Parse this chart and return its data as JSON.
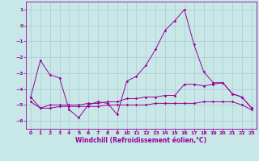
{
  "xlabel": "Windchill (Refroidissement éolien,°C)",
  "bg_color": "#c8e8e8",
  "line_color": "#990099",
  "xlim": [
    -0.5,
    23.5
  ],
  "ylim": [
    -6.5,
    1.5
  ],
  "yticks": [
    1,
    0,
    -1,
    -2,
    -3,
    -4,
    -5,
    -6
  ],
  "xticks": [
    0,
    1,
    2,
    3,
    4,
    5,
    6,
    7,
    8,
    9,
    10,
    11,
    12,
    13,
    14,
    15,
    16,
    17,
    18,
    19,
    20,
    21,
    22,
    23
  ],
  "grid_color": "#b0c8d0",
  "series": [
    {
      "x": [
        0,
        1,
        2,
        3,
        4,
        5,
        6,
        7,
        8,
        9,
        10,
        11,
        12,
        13,
        14,
        15,
        16,
        17,
        18,
        19,
        20,
        21,
        22,
        23
      ],
      "y": [
        -4.5,
        -2.2,
        -3.1,
        -3.3,
        -5.3,
        -5.8,
        -5.0,
        -4.8,
        -4.9,
        -5.6,
        -3.5,
        -3.2,
        -2.5,
        -1.5,
        -0.3,
        0.3,
        1.0,
        -1.2,
        -2.9,
        -3.6,
        -3.6,
        -4.3,
        -4.5,
        -5.2
      ]
    },
    {
      "x": [
        0,
        1,
        2,
        3,
        4,
        5,
        6,
        7,
        8,
        9,
        10,
        11,
        12,
        13,
        14,
        15,
        16,
        17,
        18,
        19,
        20,
        21,
        22,
        23
      ],
      "y": [
        -4.5,
        -5.2,
        -5.0,
        -5.0,
        -5.0,
        -5.0,
        -4.9,
        -4.9,
        -4.8,
        -4.8,
        -4.6,
        -4.6,
        -4.5,
        -4.5,
        -4.4,
        -4.4,
        -3.7,
        -3.7,
        -3.8,
        -3.7,
        -3.6,
        -4.3,
        -4.5,
        -5.2
      ]
    },
    {
      "x": [
        0,
        1,
        2,
        3,
        4,
        5,
        6,
        7,
        8,
        9,
        10,
        11,
        12,
        13,
        14,
        15,
        16,
        17,
        18,
        19,
        20,
        21,
        22,
        23
      ],
      "y": [
        -4.8,
        -5.2,
        -5.2,
        -5.1,
        -5.1,
        -5.1,
        -5.1,
        -5.1,
        -5.0,
        -5.0,
        -5.0,
        -5.0,
        -5.0,
        -4.9,
        -4.9,
        -4.9,
        -4.9,
        -4.9,
        -4.8,
        -4.8,
        -4.8,
        -4.8,
        -5.0,
        -5.3
      ]
    }
  ]
}
